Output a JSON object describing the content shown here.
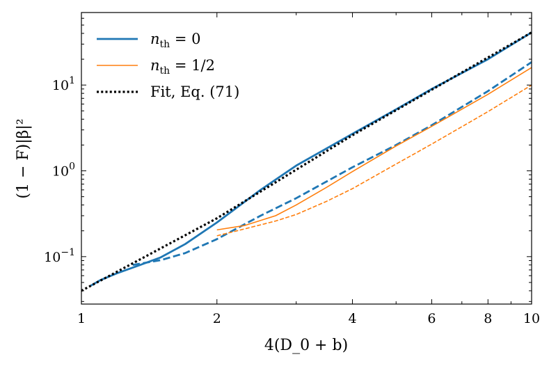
{
  "chart_data": {
    "type": "line",
    "title": "",
    "xlabel": "4(D_0 + b)",
    "ylabel": "(1 − F)|β|²",
    "xscale": "log",
    "yscale": "log",
    "xlim": [
      1,
      10
    ],
    "ylim": [
      0.028,
      70
    ],
    "x_ticks": [
      {
        "value": 1,
        "label": "1"
      },
      {
        "value": 2,
        "label": "2"
      },
      {
        "value": 4,
        "label": "4"
      },
      {
        "value": 6,
        "label": "6"
      },
      {
        "value": 8,
        "label": "8"
      },
      {
        "value": 10,
        "label": "10"
      }
    ],
    "y_ticks": [
      {
        "value": 0.1,
        "base": "10",
        "exp": "−1"
      },
      {
        "value": 1,
        "base": "10",
        "exp": "0"
      },
      {
        "value": 10,
        "base": "10",
        "exp": "1"
      }
    ],
    "legend": {
      "position": "top-left",
      "entries": [
        {
          "name_base": "n",
          "name_sub": "th",
          "name_rest": " = 0",
          "series": "nth0-solid"
        },
        {
          "name_base": "n",
          "name_sub": "th",
          "name_rest": " = 1/2",
          "series": "nth05-solid"
        },
        {
          "name_text": "Fit, Eq. (71)",
          "series": "fit"
        }
      ]
    },
    "colors": {
      "blue": "#1f77b4",
      "orange": "#ff7f0e",
      "fit": "#000000"
    },
    "series": [
      {
        "id": "nth0-solid",
        "name": "n_th = 0",
        "color": "#1f77b4",
        "style": "solid",
        "width": 2.8,
        "x": [
          1.05,
          1.1,
          1.2,
          1.35,
          1.5,
          1.7,
          2.0,
          2.5,
          3.0,
          4.0,
          5.0,
          6.0,
          8.0,
          10.0
        ],
        "y": [
          0.046,
          0.053,
          0.064,
          0.08,
          0.098,
          0.14,
          0.25,
          0.6,
          1.15,
          2.7,
          5.2,
          9.0,
          20.0,
          41.0
        ]
      },
      {
        "id": "nth0-dashed",
        "name": "n_th = 0 (dashed)",
        "color": "#1f77b4",
        "style": "dashed",
        "width": 2.8,
        "x": [
          1.3,
          1.5,
          1.7,
          2.0,
          2.5,
          3.0,
          4.0,
          5.0,
          6.0,
          8.0,
          10.0
        ],
        "y": [
          0.08,
          0.091,
          0.11,
          0.16,
          0.3,
          0.48,
          1.1,
          2.0,
          3.4,
          8.5,
          18.5
        ]
      },
      {
        "id": "nth05-solid",
        "name": "n_th = 1/2",
        "color": "#ff7f0e",
        "style": "solid",
        "width": 1.6,
        "x": [
          2.0,
          2.3,
          2.7,
          3.0,
          3.5,
          4.0,
          5.0,
          6.0,
          8.0,
          10.0
        ],
        "y": [
          0.205,
          0.23,
          0.3,
          0.4,
          0.64,
          0.98,
          1.95,
          3.3,
          7.8,
          16.0
        ]
      },
      {
        "id": "nth05-dashed",
        "name": "n_th = 1/2 (dashed)",
        "color": "#ff7f0e",
        "style": "dashed",
        "width": 1.6,
        "x": [
          2.0,
          2.3,
          2.7,
          3.0,
          3.5,
          4.0,
          5.0,
          6.0,
          8.0,
          10.0
        ],
        "y": [
          0.175,
          0.21,
          0.26,
          0.31,
          0.44,
          0.62,
          1.2,
          2.05,
          4.9,
          10.0
        ]
      },
      {
        "id": "fit",
        "name": "Fit, Eq. (71)",
        "color": "#000000",
        "style": "dotted",
        "width": 3.2,
        "x": [
          1.0,
          2.0,
          4.0,
          10.0
        ],
        "y": [
          0.04,
          0.28,
          2.6,
          41.0
        ]
      }
    ]
  }
}
